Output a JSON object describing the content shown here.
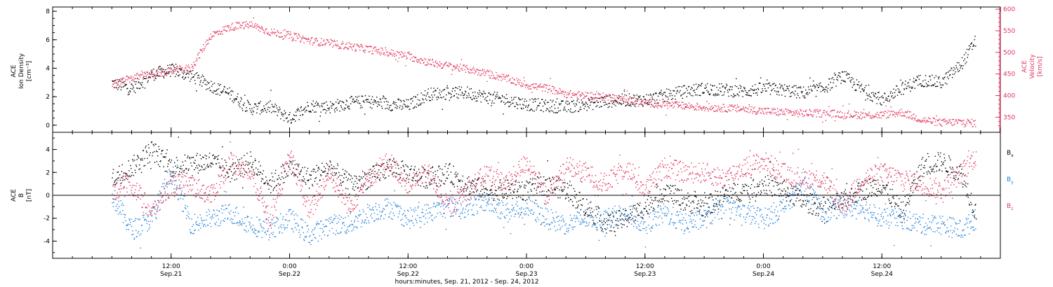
{
  "chart_data": [
    {
      "type": "scatter",
      "panel": "plasma",
      "ylabel_left": [
        "ACE",
        "Ion Density",
        "[cm⁻³]"
      ],
      "ylabel_right": [
        "ACE",
        "Velocity",
        "[km/s]"
      ],
      "ylim_left": [
        -0.5,
        8.3
      ],
      "yticks_left": [
        "0",
        "2",
        "4",
        "6",
        "8"
      ],
      "ylim_right": [
        315,
        605
      ],
      "yticks_right": [
        "350",
        "400",
        "450",
        "500",
        "550",
        "600"
      ],
      "series": [
        {
          "color": "#000000",
          "axis": "left",
          "x_hours": [
            0,
            2,
            4,
            6,
            8,
            10,
            12,
            14,
            16,
            18,
            20,
            22,
            24,
            26,
            28,
            30,
            32,
            34,
            36,
            38,
            40,
            42,
            44,
            46,
            48,
            50,
            52,
            54,
            56,
            58,
            60,
            62,
            64,
            66,
            68,
            70,
            72,
            74,
            76,
            78,
            80,
            82,
            84,
            86,
            87.5
          ],
          "values": [
            3.0,
            2.6,
            3.6,
            3.9,
            3.5,
            2.8,
            2.2,
            1.2,
            1.3,
            0.5,
            1.4,
            1.3,
            1.6,
            1.7,
            1.5,
            1.4,
            2.2,
            2.3,
            2.3,
            2.0,
            1.8,
            1.5,
            1.4,
            1.3,
            1.5,
            1.7,
            1.8,
            1.8,
            2.1,
            2.4,
            2.6,
            2.5,
            2.4,
            2.6,
            2.5,
            2.3,
            2.6,
            3.5,
            2.5,
            1.8,
            2.6,
            3.2,
            3.0,
            4.3,
            6.0
          ]
        },
        {
          "color": "#e0345e",
          "axis": "right",
          "x_hours": [
            0,
            2,
            4,
            6,
            8,
            10,
            12,
            14,
            16,
            18,
            20,
            22,
            24,
            26,
            28,
            30,
            32,
            34,
            36,
            38,
            40,
            42,
            44,
            46,
            48,
            50,
            52,
            54,
            56,
            58,
            60,
            62,
            64,
            66,
            68,
            70,
            72,
            74,
            76,
            78,
            80,
            82,
            84,
            86,
            87.5
          ],
          "values": [
            425,
            442,
            450,
            458,
            465,
            540,
            560,
            565,
            548,
            540,
            528,
            522,
            515,
            508,
            500,
            492,
            478,
            470,
            462,
            452,
            440,
            425,
            418,
            405,
            400,
            398,
            392,
            385,
            380,
            377,
            374,
            372,
            370,
            365,
            362,
            360,
            360,
            358,
            356,
            356,
            362,
            345,
            338,
            340,
            337
          ]
        }
      ]
    },
    {
      "type": "scatter",
      "panel": "magnetic",
      "ylabel_left": [
        "ACE",
        "B",
        "[nT]"
      ],
      "ylim": [
        -5.5,
        5.5
      ],
      "yticks": [
        "-4",
        "-2",
        "0",
        "2",
        "4"
      ],
      "zero_line": true,
      "legend_placement": "right",
      "series": [
        {
          "name": "Bx",
          "color": "#000000",
          "x_hours": [
            0,
            2,
            4,
            6,
            8,
            10,
            12,
            14,
            16,
            18,
            20,
            22,
            24,
            26,
            28,
            30,
            32,
            34,
            36,
            38,
            40,
            42,
            44,
            46,
            48,
            50,
            52,
            54,
            56,
            58,
            60,
            62,
            64,
            66,
            68,
            70,
            72,
            74,
            76,
            78,
            80,
            82,
            84,
            86,
            87.5
          ],
          "values": [
            1.5,
            2.5,
            4.0,
            2.5,
            2.8,
            3.0,
            2.0,
            3.0,
            1.0,
            2.5,
            1.5,
            2.5,
            1.0,
            1.5,
            2.5,
            2.0,
            1.5,
            2.0,
            1.0,
            0.5,
            0.5,
            0.5,
            1.0,
            0.5,
            -1.0,
            -2.5,
            -2.0,
            -1.0,
            0.5,
            -0.5,
            -1.0,
            0.0,
            0.5,
            1.0,
            0.5,
            -0.5,
            -1.0,
            -0.5,
            0.5,
            1.0,
            -1.5,
            2.5,
            3.0,
            2.0,
            -1.5
          ]
        },
        {
          "name": "By",
          "color": "#1f7fd6",
          "x_hours": [
            0,
            2,
            4,
            6,
            8,
            10,
            12,
            14,
            16,
            18,
            20,
            22,
            24,
            26,
            28,
            30,
            32,
            34,
            36,
            38,
            40,
            42,
            44,
            46,
            48,
            50,
            52,
            54,
            56,
            58,
            60,
            62,
            64,
            66,
            68,
            70,
            72,
            74,
            76,
            78,
            80,
            82,
            84,
            86,
            87.5
          ],
          "values": [
            0.0,
            -3.0,
            -2.0,
            2.0,
            -2.5,
            -2.0,
            -1.5,
            -2.5,
            -3.0,
            -2.0,
            -3.5,
            -2.5,
            -2.5,
            -1.5,
            -1.0,
            -2.0,
            -1.5,
            -1.0,
            -1.0,
            -0.5,
            -1.5,
            -1.0,
            -2.0,
            -2.5,
            -2.0,
            -2.0,
            -1.5,
            -2.5,
            -1.5,
            -2.5,
            -2.0,
            -1.0,
            -1.5,
            -2.0,
            -1.0,
            1.0,
            -1.5,
            -1.0,
            -1.0,
            -2.0,
            -2.0,
            -2.5,
            -2.5,
            -3.0,
            -2.0
          ]
        },
        {
          "name": "Bz",
          "color": "#e0345e",
          "x_hours": [
            0,
            2,
            4,
            6,
            8,
            10,
            12,
            14,
            16,
            18,
            20,
            22,
            24,
            26,
            28,
            30,
            32,
            34,
            36,
            38,
            40,
            42,
            44,
            46,
            48,
            50,
            52,
            54,
            56,
            58,
            60,
            62,
            64,
            66,
            68,
            70,
            72,
            74,
            76,
            78,
            80,
            82,
            84,
            86,
            87.5
          ],
          "values": [
            0.5,
            1.0,
            -1.5,
            1.0,
            1.0,
            0.0,
            3.0,
            2.0,
            -2.0,
            3.5,
            -1.5,
            2.0,
            -1.0,
            1.5,
            3.0,
            1.0,
            2.0,
            -1.0,
            0.5,
            2.0,
            1.0,
            3.0,
            0.0,
            2.5,
            2.0,
            1.0,
            2.5,
            0.5,
            2.5,
            2.0,
            2.0,
            1.5,
            2.5,
            3.0,
            2.0,
            1.5,
            1.5,
            -1.0,
            1.5,
            2.0,
            1.5,
            1.0,
            0.5,
            2.0,
            3.5
          ]
        }
      ],
      "legend_labels": [
        {
          "base": "B",
          "sub": "x",
          "color": "#000000"
        },
        {
          "base": "B",
          "sub": "y",
          "color": "#1f7fd6"
        },
        {
          "base": "B",
          "sub": "z",
          "color": "#e0345e"
        }
      ]
    }
  ],
  "x_axis": {
    "range_hours": [
      -6,
      90
    ],
    "major_tick_hours": [
      6,
      18,
      30,
      42,
      54,
      66,
      78,
      90
    ],
    "tick_time_labels": [
      "12:00",
      "0:00",
      "12:00",
      "0:00",
      "12:00",
      "0:00",
      "12:00"
    ],
    "tick_date_labels": [
      "Sep.21",
      "Sep.22",
      "Sep.22",
      "Sep.23",
      "Sep.23",
      "Sep.24",
      "Sep.24"
    ],
    "title": "hours:minutes, Sep. 21, 2012 - Sep. 24, 2012"
  }
}
